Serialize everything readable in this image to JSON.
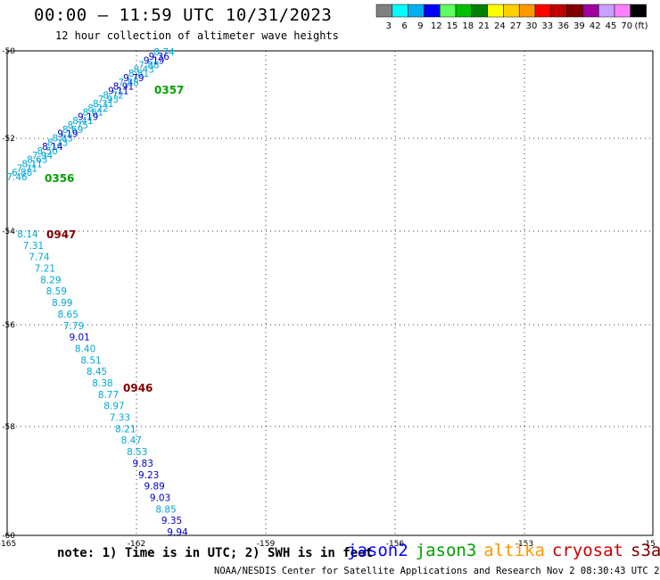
{
  "header": {
    "title": "00:00 – 11:59 UTC 10/31/2023",
    "subtitle": "12 hour collection of altimeter wave heights"
  },
  "legend": {
    "unit": "(ft)",
    "bins": [
      {
        "label": "3",
        "color": "#808080"
      },
      {
        "label": "6",
        "color": "#00ffff"
      },
      {
        "label": "9",
        "color": "#00b0f0"
      },
      {
        "label": "12",
        "color": "#0000ff"
      },
      {
        "label": "15",
        "color": "#60ff60"
      },
      {
        "label": "18",
        "color": "#00c000"
      },
      {
        "label": "21",
        "color": "#008000"
      },
      {
        "label": "24",
        "color": "#ffff00"
      },
      {
        "label": "27",
        "color": "#ffd000"
      },
      {
        "label": "30",
        "color": "#ff9900"
      },
      {
        "label": "33",
        "color": "#ff0000"
      },
      {
        "label": "36",
        "color": "#c00000"
      },
      {
        "label": "39",
        "color": "#800000"
      },
      {
        "label": "42",
        "color": "#a000a0"
      },
      {
        "label": "45",
        "color": "#c8a0ff"
      },
      {
        "label": "70",
        "color": "#ff80ff"
      },
      {
        "label": "",
        "color": "#000000"
      }
    ]
  },
  "axes": {
    "lat_labels": [
      "-50",
      "-52",
      "-54",
      "-56",
      "-58",
      "-60"
    ],
    "lon_labels": [
      "-165",
      "-162",
      "-159",
      "-156",
      "-153",
      "-15"
    ]
  },
  "track_upper": {
    "labels": [
      "8.74",
      "9.36",
      "9.19",
      "7.88",
      "8.43",
      "8.81",
      "9.79",
      "7.88",
      "8.91",
      "9.11",
      "8.72",
      "7.93",
      "8.31",
      "8.22",
      "8.61",
      "9.19",
      "8.41",
      "8.75",
      "8.69",
      "9.19",
      "8.83",
      "8.23",
      "8.14",
      "8.50",
      "7.94",
      "8.63",
      "8.11",
      "7.71",
      "6.88",
      "7.46"
    ],
    "colors": [
      "c",
      "b",
      "b",
      "c",
      "c",
      "c",
      "b",
      "c",
      "b",
      "b",
      "c",
      "c",
      "c",
      "c",
      "c",
      "b",
      "c",
      "c",
      "c",
      "b",
      "c",
      "c",
      "b",
      "c",
      "c",
      "c",
      "c",
      "c",
      "c",
      "c"
    ],
    "time_a": "0357",
    "time_b": "0356"
  },
  "track_lower": {
    "labels": [
      "8.14",
      "7.31",
      "7.74",
      "7.21",
      "8.29",
      "8.59",
      "8.99",
      "8.65",
      "7.79",
      "9.01",
      "8.40",
      "8.51",
      "8.45",
      "8.38",
      "8.77",
      "8.97",
      "7.33",
      "8.21",
      "8.47",
      "8.53",
      "9.83",
      "9.23",
      "9.89",
      "9.03",
      "8.85",
      "9.35",
      "9.94"
    ],
    "colors": [
      "c",
      "c",
      "c",
      "c",
      "c",
      "c",
      "c",
      "c",
      "c",
      "b",
      "c",
      "c",
      "c",
      "c",
      "c",
      "c",
      "c",
      "c",
      "c",
      "c",
      "b",
      "b",
      "b",
      "b",
      "c",
      "b",
      "b"
    ],
    "time_a": "0947",
    "time_b": "0946"
  },
  "colors": {
    "cyan_label": "#00a8d8",
    "blue_label": "#0000c8",
    "jason2": "#0000ff",
    "jason3": "#00a000",
    "altika": "#ff9900",
    "cryosat": "#cc0000",
    "s3a": "#800000",
    "grid": "#000000"
  },
  "footer": {
    "note": "note:  1) Time is in UTC;  2) SWH is in feet",
    "satellites": [
      "jason2",
      "jason3",
      "altika",
      "cryosat",
      "s3a"
    ],
    "credit": "NOAA/NESDIS Center for Satellite Applications and Research    Nov  2 08:30:43 UTC 2023"
  }
}
